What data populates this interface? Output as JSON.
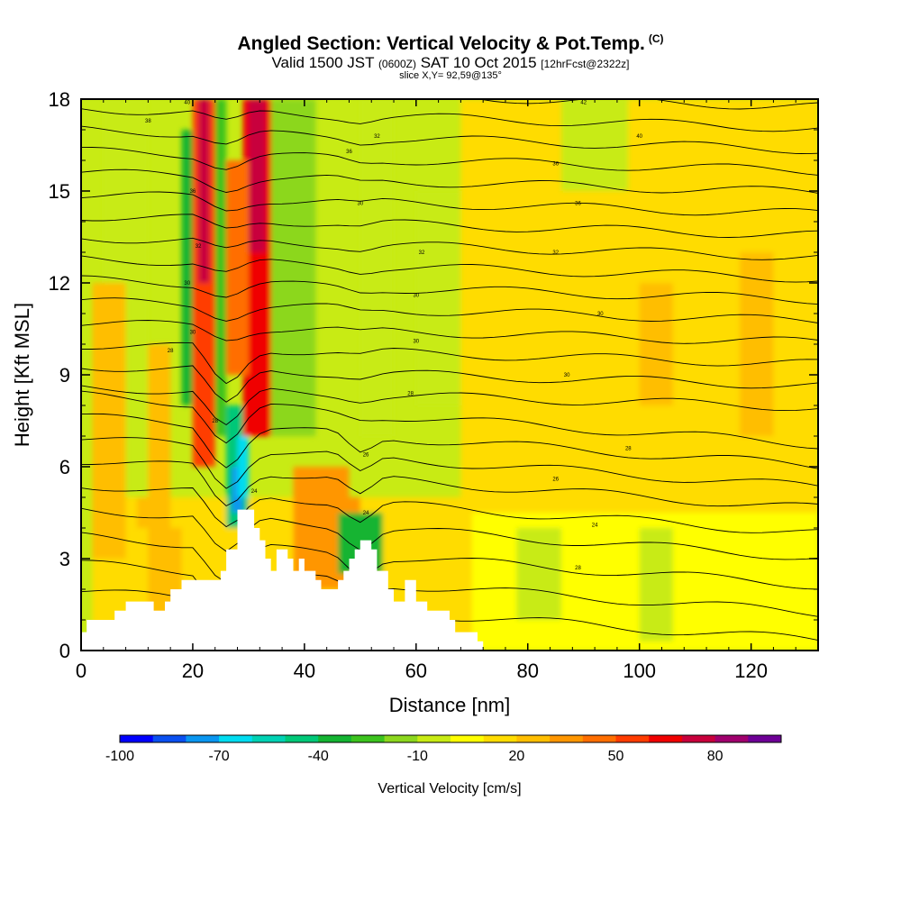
{
  "header": {
    "title": "Angled Section: Vertical Velocity & Pot.Temp.",
    "title_tag": "(C)",
    "valid_prefix": "Valid 1500 JST",
    "valid_z": "(0600Z)",
    "valid_date": "SAT 10 Oct 2015",
    "fcst": "[12hrFcst@2322z]",
    "slice": "slice X,Y= 92,59@135°"
  },
  "chart_data": {
    "type": "heatmap",
    "xlabel": "Distance [nm]",
    "ylabel": "Height [Kft MSL]",
    "xlim": [
      0,
      132
    ],
    "ylim": [
      0,
      18
    ],
    "x_ticks": [
      "0",
      "20",
      "40",
      "60",
      "80",
      "100",
      "120"
    ],
    "y_ticks": [
      "0",
      "3",
      "6",
      "9",
      "12",
      "15",
      "18"
    ],
    "x_tick_values": [
      0,
      20,
      40,
      60,
      80,
      100,
      120
    ],
    "y_tick_values": [
      0,
      3,
      6,
      9,
      12,
      15,
      18
    ],
    "colorbar": {
      "title": "Vertical Velocity [cm/s]",
      "min": -100,
      "max": 100,
      "step": 10,
      "labels": [
        "-100",
        "-70",
        "-40",
        "-10",
        "20",
        "50",
        "80"
      ],
      "label_values": [
        -100,
        -70,
        -40,
        -10,
        20,
        50,
        80
      ],
      "colors": [
        "#0000ff",
        "#0a50f0",
        "#0a96f0",
        "#00dcf0",
        "#00d2b4",
        "#00c878",
        "#14b432",
        "#3cc31e",
        "#8cd71e",
        "#c8eb14",
        "#ffff00",
        "#ffdc00",
        "#ffbe00",
        "#ff9600",
        "#ff6e00",
        "#ff3c00",
        "#f00000",
        "#c8003c",
        "#a0006e",
        "#6e0096"
      ]
    },
    "terrain_profile": [
      [
        0,
        0.6
      ],
      [
        1,
        0.6
      ],
      [
        1,
        1
      ],
      [
        6,
        1
      ],
      [
        6,
        1.3
      ],
      [
        8,
        1.3
      ],
      [
        8,
        1.6
      ],
      [
        13,
        1.6
      ],
      [
        13,
        1.3
      ],
      [
        15,
        1.3
      ],
      [
        15,
        1.6
      ],
      [
        16,
        1.6
      ],
      [
        16,
        2
      ],
      [
        18,
        2
      ],
      [
        18,
        2.3
      ],
      [
        25,
        2.3
      ],
      [
        25,
        2.6
      ],
      [
        26,
        2.6
      ],
      [
        26,
        3.3
      ],
      [
        28,
        3.3
      ],
      [
        28,
        4.6
      ],
      [
        31,
        4.6
      ],
      [
        31,
        4
      ],
      [
        32,
        4
      ],
      [
        32,
        3.6
      ],
      [
        33,
        3.6
      ],
      [
        33,
        3
      ],
      [
        34,
        3
      ],
      [
        34,
        2.6
      ],
      [
        35,
        2.6
      ],
      [
        35,
        3.3
      ],
      [
        37,
        3.3
      ],
      [
        37,
        3
      ],
      [
        38,
        3
      ],
      [
        38,
        2.6
      ],
      [
        39,
        2.6
      ],
      [
        39,
        3
      ],
      [
        40,
        3
      ],
      [
        40,
        2.6
      ],
      [
        42,
        2.6
      ],
      [
        42,
        2.3
      ],
      [
        43,
        2.3
      ],
      [
        43,
        2
      ],
      [
        46,
        2
      ],
      [
        46,
        2.3
      ],
      [
        47,
        2.3
      ],
      [
        47,
        2.6
      ],
      [
        48,
        2.6
      ],
      [
        48,
        3
      ],
      [
        49,
        3
      ],
      [
        49,
        3.3
      ],
      [
        50,
        3.3
      ],
      [
        50,
        3.6
      ],
      [
        52,
        3.6
      ],
      [
        52,
        3.3
      ],
      [
        53,
        3.3
      ],
      [
        53,
        2.6
      ],
      [
        55,
        2.6
      ],
      [
        55,
        2
      ],
      [
        56,
        2
      ],
      [
        56,
        1.6
      ],
      [
        58,
        1.6
      ],
      [
        58,
        2.3
      ],
      [
        60,
        2.3
      ],
      [
        60,
        1.6
      ],
      [
        62,
        1.6
      ],
      [
        62,
        1.3
      ],
      [
        66,
        1.3
      ],
      [
        66,
        1
      ],
      [
        67,
        1
      ],
      [
        67,
        0.6
      ],
      [
        71,
        0.6
      ],
      [
        71,
        0.3
      ],
      [
        72,
        0.3
      ],
      [
        72,
        0
      ],
      [
        132,
        0
      ]
    ],
    "theta_labels": [
      {
        "text": "40",
        "x": 19,
        "y": 17.9
      },
      {
        "text": "38",
        "x": 12,
        "y": 17.3
      },
      {
        "text": "42",
        "x": 90,
        "y": 17.9
      },
      {
        "text": "36",
        "x": 48,
        "y": 16.3
      },
      {
        "text": "40",
        "x": 100,
        "y": 16.8
      },
      {
        "text": "32",
        "x": 53,
        "y": 16.8
      },
      {
        "text": "36",
        "x": 85,
        "y": 15.9
      },
      {
        "text": "36",
        "x": 20,
        "y": 15.0
      },
      {
        "text": "36",
        "x": 89,
        "y": 14.6
      },
      {
        "text": "30",
        "x": 50,
        "y": 14.6
      },
      {
        "text": "32",
        "x": 61,
        "y": 13.0
      },
      {
        "text": "32",
        "x": 85,
        "y": 13.0
      },
      {
        "text": "32",
        "x": 21,
        "y": 13.2
      },
      {
        "text": "30",
        "x": 19,
        "y": 12.0
      },
      {
        "text": "30",
        "x": 60,
        "y": 11.6
      },
      {
        "text": "30",
        "x": 93,
        "y": 11.0
      },
      {
        "text": "30",
        "x": 20,
        "y": 10.4
      },
      {
        "text": "30",
        "x": 60,
        "y": 10.1
      },
      {
        "text": "28",
        "x": 16,
        "y": 9.8
      },
      {
        "text": "30",
        "x": 87,
        "y": 9.0
      },
      {
        "text": "28",
        "x": 59,
        "y": 8.4
      },
      {
        "text": "28",
        "x": 24,
        "y": 7.5
      },
      {
        "text": "28",
        "x": 98,
        "y": 6.6
      },
      {
        "text": "26",
        "x": 51,
        "y": 6.4
      },
      {
        "text": "26",
        "x": 85,
        "y": 5.6
      },
      {
        "text": "24",
        "x": 31,
        "y": 5.2
      },
      {
        "text": "24",
        "x": 51,
        "y": 4.5
      },
      {
        "text": "24",
        "x": 92,
        "y": 4.1
      },
      {
        "text": "28",
        "x": 89,
        "y": 2.7
      }
    ]
  }
}
